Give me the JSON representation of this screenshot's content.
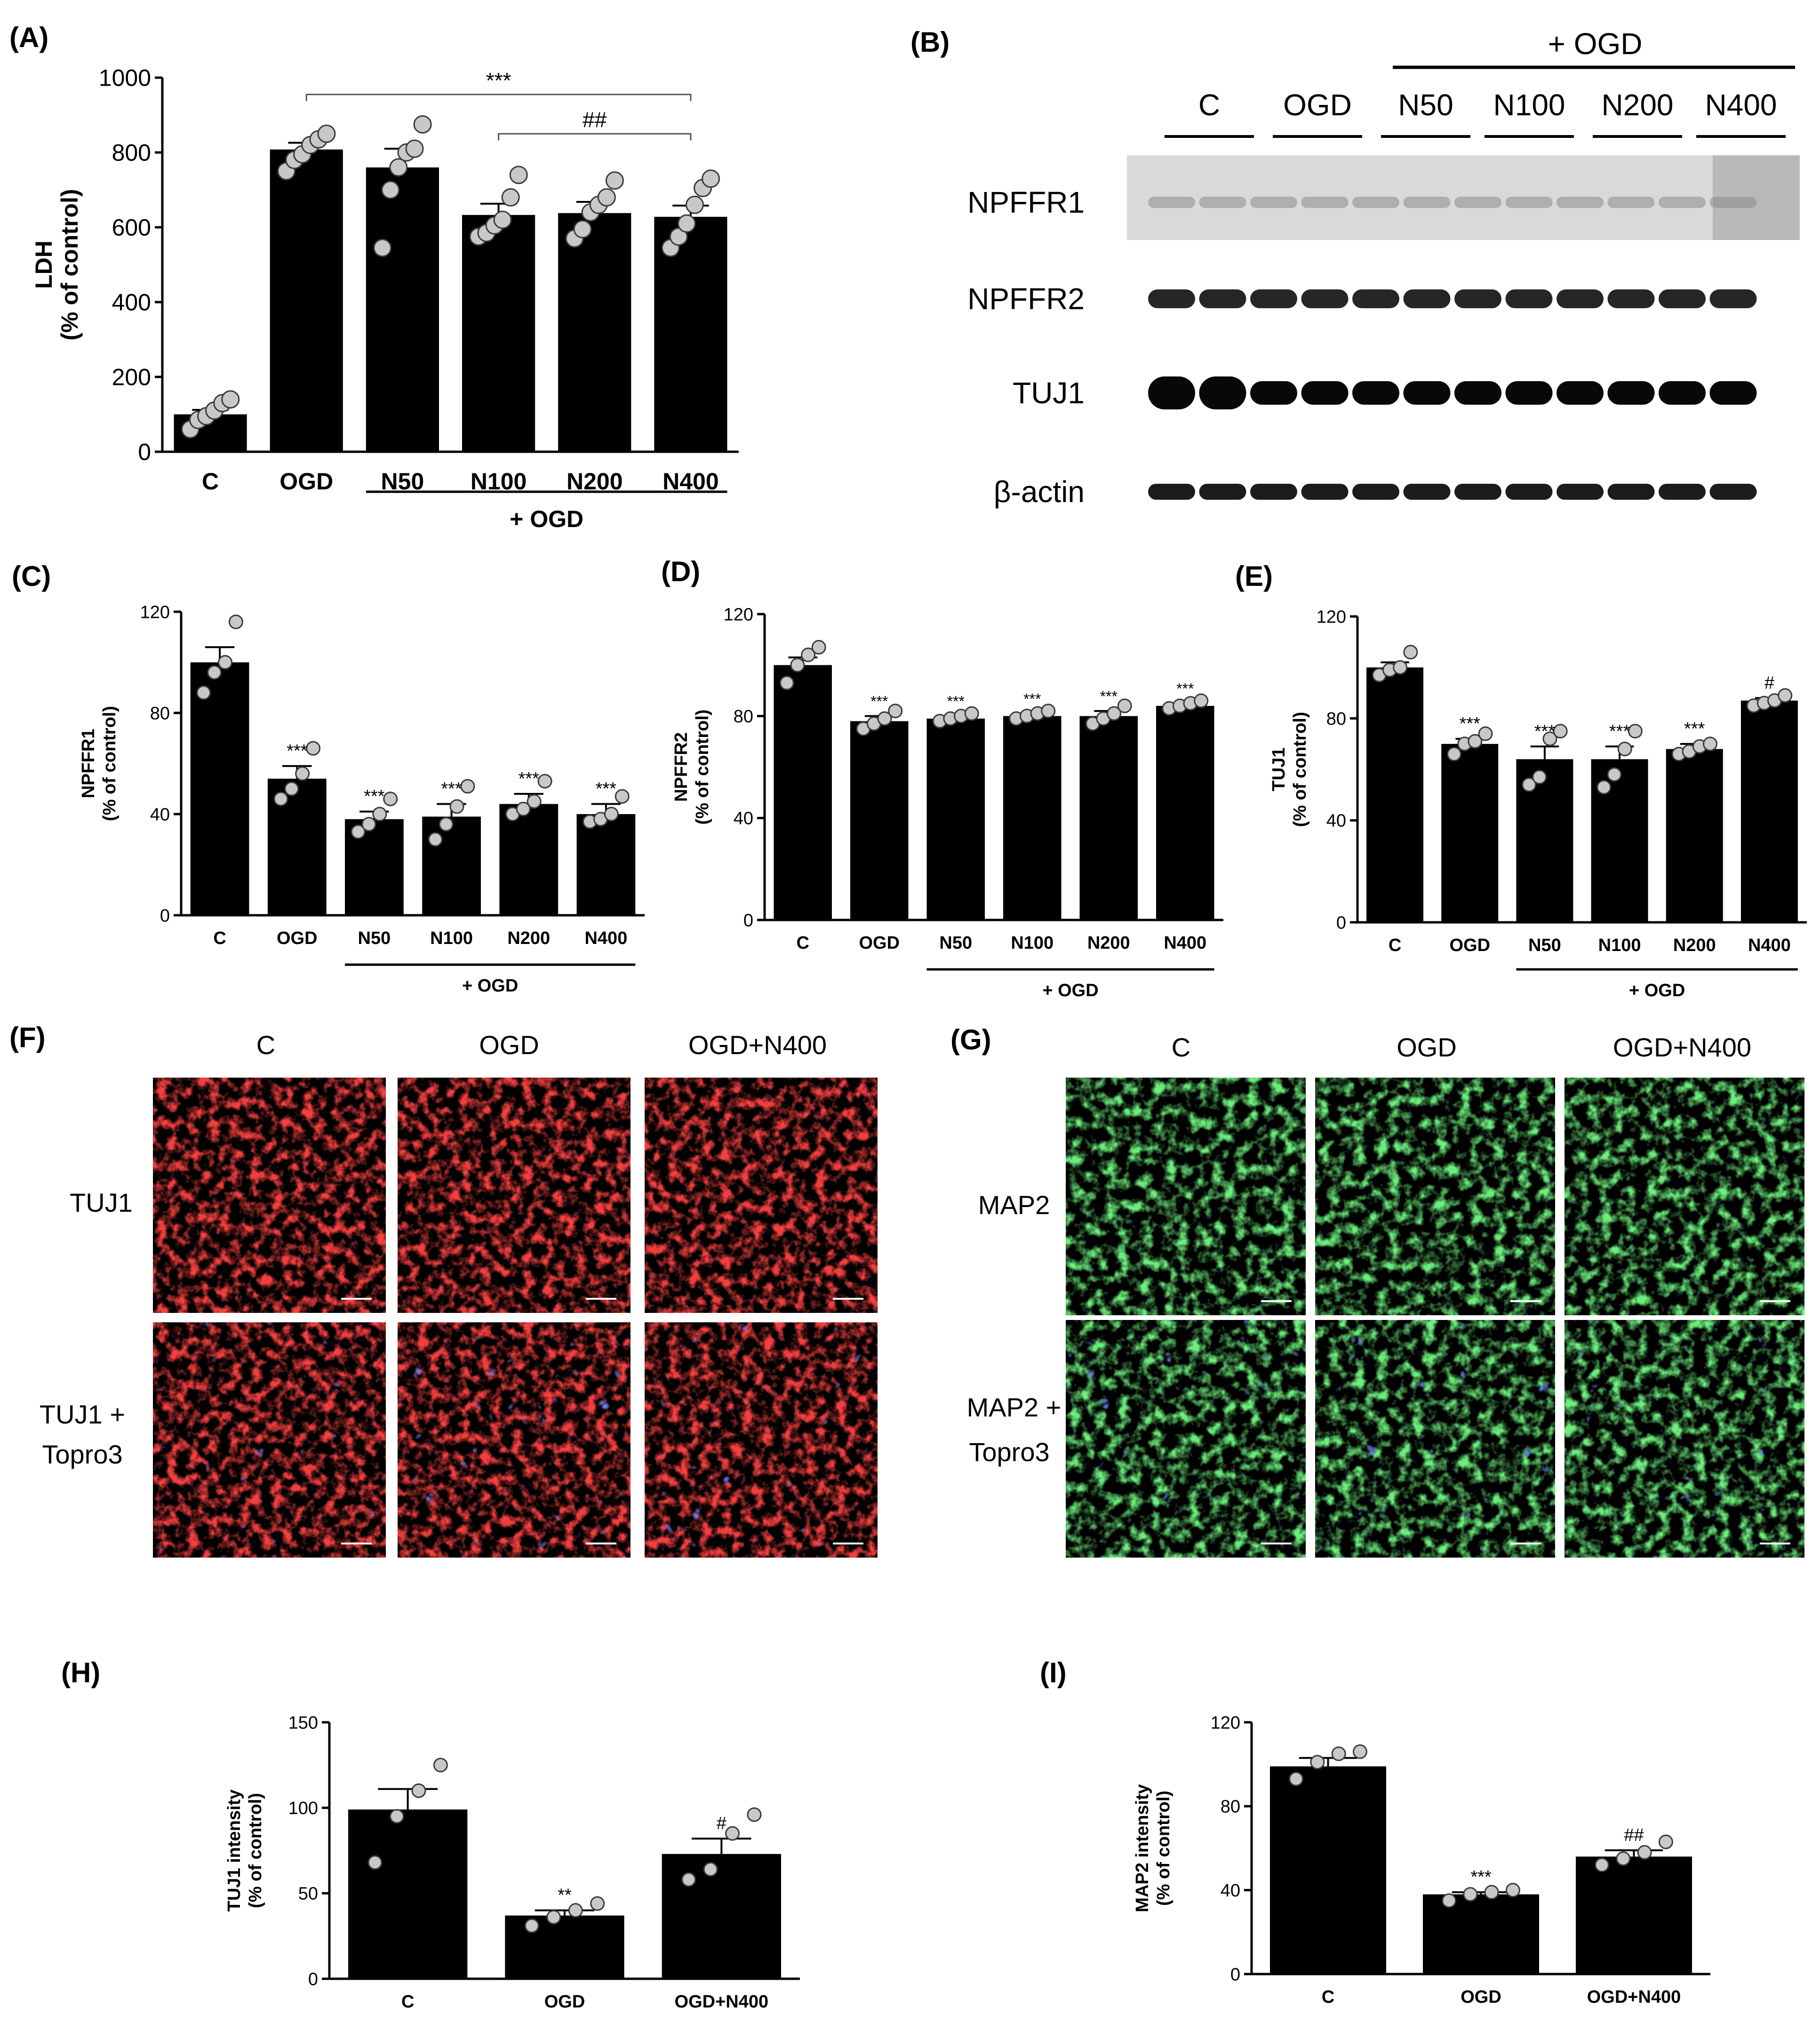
{
  "panels": {
    "A": "(A)",
    "B": "(B)",
    "C": "(C)",
    "D": "(D)",
    "E": "(E)",
    "F": "(F)",
    "G": "(G)",
    "H": "(H)",
    "I": "(I)"
  },
  "colors": {
    "bar": "#000000",
    "point_fill": "#c8c8c8",
    "point_stroke": "#3a3a3a",
    "tuj1_red": "#e0140f",
    "map2_green": "#2fd23a",
    "topro_blue": "#2a3fe0"
  },
  "chart_data": [
    {
      "id": "A",
      "type": "bar",
      "ylabel": [
        "LDH",
        "(% of control)"
      ],
      "ylim": [
        0,
        1000
      ],
      "yticks": [
        "0",
        "200",
        "400",
        "600",
        "800",
        "1000"
      ],
      "categories": [
        "C",
        "OGD",
        "N50",
        "N100",
        "N200",
        "N400"
      ],
      "values": [
        100,
        808,
        760,
        633,
        638,
        628
      ],
      "errors": [
        12,
        18,
        50,
        30,
        30,
        30
      ],
      "points": [
        [
          60,
          85,
          95,
          110,
          130,
          140
        ],
        [
          750,
          780,
          795,
          820,
          835,
          850
        ],
        [
          545,
          700,
          760,
          800,
          810,
          875
        ],
        [
          575,
          585,
          605,
          620,
          680,
          740
        ],
        [
          570,
          595,
          640,
          660,
          680,
          725
        ],
        [
          545,
          575,
          610,
          660,
          705,
          730
        ]
      ],
      "group_label": "+ OGD",
      "group_span": [
        2,
        5
      ],
      "brackets": [
        {
          "from": 1,
          "to": 5,
          "y": 955,
          "label": "***"
        },
        {
          "from": 3,
          "to": 5,
          "y": 850,
          "label": "##"
        }
      ],
      "annotations": []
    },
    {
      "id": "C",
      "type": "bar",
      "ylabel": [
        "NPFFR1",
        "(% of control)"
      ],
      "ylim": [
        0,
        120
      ],
      "yticks": [
        "0",
        "40",
        "80",
        "120"
      ],
      "categories": [
        "C",
        "OGD",
        "N50",
        "N100",
        "N200",
        "N400"
      ],
      "values": [
        100,
        54,
        38,
        39,
        44,
        40
      ],
      "errors": [
        6,
        5,
        3,
        5,
        4,
        4
      ],
      "points": [
        [
          88,
          96,
          100,
          116
        ],
        [
          46,
          50,
          56,
          66
        ],
        [
          33,
          36,
          40,
          46
        ],
        [
          30,
          36,
          43,
          51
        ],
        [
          40,
          42,
          45,
          53
        ],
        [
          37,
          38,
          40,
          47
        ]
      ],
      "group_label": "+ OGD",
      "group_span": [
        2,
        5
      ],
      "brackets": [],
      "annotations": [
        "",
        "***",
        "***",
        "***",
        "***",
        "***"
      ]
    },
    {
      "id": "D",
      "type": "bar",
      "ylabel": [
        "NPFFR2",
        "(% of control)"
      ],
      "ylim": [
        0,
        120
      ],
      "yticks": [
        "0",
        "40",
        "80",
        "120"
      ],
      "categories": [
        "C",
        "OGD",
        "N50",
        "N100",
        "N200",
        "N400"
      ],
      "values": [
        100,
        78,
        79,
        80,
        80,
        84
      ],
      "errors": [
        3,
        2,
        1,
        1,
        2,
        1
      ],
      "points": [
        [
          93,
          100,
          104,
          107
        ],
        [
          75,
          77,
          79,
          82
        ],
        [
          78,
          79,
          80,
          81
        ],
        [
          79,
          80,
          81,
          82
        ],
        [
          77,
          79,
          81,
          84
        ],
        [
          83,
          84,
          85,
          86
        ]
      ],
      "group_label": "+ OGD",
      "group_span": [
        2,
        5
      ],
      "brackets": [],
      "annotations": [
        "",
        "***",
        "***",
        "***",
        "***",
        "***"
      ]
    },
    {
      "id": "E",
      "type": "bar",
      "ylabel": [
        "TUJ1",
        "(% of control)"
      ],
      "ylim": [
        0,
        120
      ],
      "yticks": [
        "0",
        "40",
        "80",
        "120"
      ],
      "categories": [
        "C",
        "OGD",
        "N50",
        "N100",
        "N200",
        "N400"
      ],
      "values": [
        100,
        70,
        64,
        64,
        68,
        87
      ],
      "errors": [
        2,
        2,
        5,
        5,
        2,
        1
      ],
      "points": [
        [
          97,
          99,
          100,
          106
        ],
        [
          66,
          70,
          71,
          74
        ],
        [
          54,
          57,
          72,
          75
        ],
        [
          53,
          58,
          68,
          75
        ],
        [
          66,
          67,
          69,
          70
        ],
        [
          85,
          86,
          87,
          89
        ]
      ],
      "group_label": "+ OGD",
      "group_span": [
        2,
        5
      ],
      "brackets": [],
      "annotations": [
        "",
        "***",
        "***",
        "***",
        "***",
        "#"
      ]
    },
    {
      "id": "H",
      "type": "bar",
      "ylabel": [
        "TUJ1 intensity",
        "(% of control)"
      ],
      "ylim": [
        0,
        150
      ],
      "yticks": [
        "0",
        "50",
        "100",
        "150"
      ],
      "categories": [
        "C",
        "OGD",
        "OGD+N400"
      ],
      "values": [
        99,
        37,
        73
      ],
      "errors": [
        12,
        3,
        9
      ],
      "points": [
        [
          68,
          95,
          110,
          125
        ],
        [
          31,
          36,
          40,
          44
        ],
        [
          58,
          64,
          85,
          96
        ]
      ],
      "group_label": "",
      "group_span": null,
      "brackets": [],
      "annotations": [
        "",
        "**",
        "#"
      ]
    },
    {
      "id": "I",
      "type": "bar",
      "ylabel": [
        "MAP2 intensity",
        "(% of control)"
      ],
      "ylim": [
        0,
        120
      ],
      "yticks": [
        "0",
        "40",
        "80",
        "120"
      ],
      "categories": [
        "C",
        "OGD",
        "OGD+N400"
      ],
      "values": [
        99,
        38,
        56
      ],
      "errors": [
        4,
        1,
        3
      ],
      "points": [
        [
          93,
          101,
          105,
          106
        ],
        [
          35,
          38,
          39,
          40
        ],
        [
          52,
          55,
          58,
          63
        ]
      ],
      "group_label": "",
      "group_span": null,
      "brackets": [],
      "annotations": [
        "",
        "***",
        "##"
      ]
    }
  ],
  "blot": {
    "group_label": "+ OGD",
    "lanes": [
      "C",
      "OGD",
      "N50",
      "N100",
      "N200",
      "N400"
    ],
    "rows": [
      "NPFFR1",
      "NPFFR2",
      "TUJ1",
      "β-actin"
    ]
  },
  "micro_F": {
    "columns": [
      "C",
      "OGD",
      "OGD+N400"
    ],
    "rows": [
      "TUJ1",
      "TUJ1 +",
      "Topro3"
    ]
  },
  "micro_G": {
    "columns": [
      "C",
      "OGD",
      "OGD+N400"
    ],
    "rows": [
      "MAP2",
      "MAP2 +",
      "Topro3"
    ]
  }
}
